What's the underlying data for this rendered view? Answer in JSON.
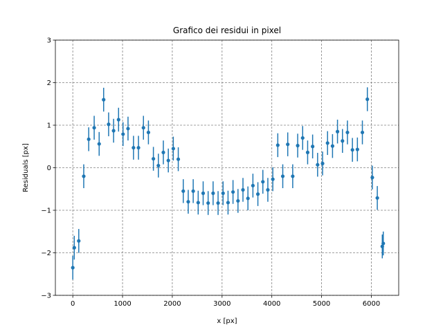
{
  "chart_data": {
    "type": "scatter",
    "title": "Grafico dei residui in pixel",
    "xlabel": "x [px]",
    "ylabel": "Residuals [px]",
    "xlim": [
      -350,
      6550
    ],
    "ylim": [
      -3,
      3
    ],
    "xticks": [
      0,
      1000,
      2000,
      3000,
      4000,
      5000,
      6000
    ],
    "yticks": [
      -3,
      -2,
      -1,
      0,
      1,
      2,
      3
    ],
    "xtick_labels": [
      "0",
      "1000",
      "2000",
      "3000",
      "4000",
      "5000",
      "6000"
    ],
    "ytick_labels": [
      "−3",
      "−2",
      "−1",
      "0",
      "1",
      "2",
      "3"
    ],
    "grid": true,
    "color": "#1f77b4",
    "grid_color": "#808080",
    "points": [
      {
        "x": 0,
        "y": -2.35,
        "err": 0.28
      },
      {
        "x": 30,
        "y": -1.88,
        "err": 0.28
      },
      {
        "x": 120,
        "y": -1.72,
        "err": 0.28
      },
      {
        "x": 220,
        "y": -0.2,
        "err": 0.28
      },
      {
        "x": 320,
        "y": 0.67,
        "err": 0.28
      },
      {
        "x": 430,
        "y": 0.94,
        "err": 0.28
      },
      {
        "x": 530,
        "y": 0.56,
        "err": 0.28
      },
      {
        "x": 620,
        "y": 1.6,
        "err": 0.28
      },
      {
        "x": 720,
        "y": 1.02,
        "err": 0.28
      },
      {
        "x": 820,
        "y": 0.87,
        "err": 0.28
      },
      {
        "x": 920,
        "y": 1.13,
        "err": 0.28
      },
      {
        "x": 1010,
        "y": 0.79,
        "err": 0.28
      },
      {
        "x": 1110,
        "y": 0.92,
        "err": 0.28
      },
      {
        "x": 1220,
        "y": 0.47,
        "err": 0.28
      },
      {
        "x": 1320,
        "y": 0.47,
        "err": 0.28
      },
      {
        "x": 1420,
        "y": 0.94,
        "err": 0.28
      },
      {
        "x": 1520,
        "y": 0.83,
        "err": 0.28
      },
      {
        "x": 1620,
        "y": 0.21,
        "err": 0.28
      },
      {
        "x": 1720,
        "y": 0.05,
        "err": 0.28
      },
      {
        "x": 1820,
        "y": 0.36,
        "err": 0.28
      },
      {
        "x": 1920,
        "y": 0.17,
        "err": 0.28
      },
      {
        "x": 2020,
        "y": 0.45,
        "err": 0.28
      },
      {
        "x": 2120,
        "y": 0.2,
        "err": 0.28
      },
      {
        "x": 2220,
        "y": -0.55,
        "err": 0.28
      },
      {
        "x": 2320,
        "y": -0.8,
        "err": 0.28
      },
      {
        "x": 2420,
        "y": -0.55,
        "err": 0.28
      },
      {
        "x": 2520,
        "y": -0.82,
        "err": 0.28
      },
      {
        "x": 2620,
        "y": -0.6,
        "err": 0.28
      },
      {
        "x": 2720,
        "y": -0.83,
        "err": 0.28
      },
      {
        "x": 2820,
        "y": -0.6,
        "err": 0.28
      },
      {
        "x": 2920,
        "y": -0.83,
        "err": 0.28
      },
      {
        "x": 3020,
        "y": -0.6,
        "err": 0.28
      },
      {
        "x": 3120,
        "y": -0.82,
        "err": 0.28
      },
      {
        "x": 3220,
        "y": -0.57,
        "err": 0.28
      },
      {
        "x": 3320,
        "y": -0.78,
        "err": 0.28
      },
      {
        "x": 3420,
        "y": -0.52,
        "err": 0.28
      },
      {
        "x": 3520,
        "y": -0.72,
        "err": 0.28
      },
      {
        "x": 3620,
        "y": -0.42,
        "err": 0.28
      },
      {
        "x": 3720,
        "y": -0.62,
        "err": 0.28
      },
      {
        "x": 3820,
        "y": -0.33,
        "err": 0.28
      },
      {
        "x": 3920,
        "y": -0.52,
        "err": 0.28
      },
      {
        "x": 4020,
        "y": -0.27,
        "err": 0.28
      },
      {
        "x": 4120,
        "y": 0.53,
        "err": 0.28
      },
      {
        "x": 4220,
        "y": -0.2,
        "err": 0.28
      },
      {
        "x": 4320,
        "y": 0.55,
        "err": 0.28
      },
      {
        "x": 4420,
        "y": -0.2,
        "err": 0.28
      },
      {
        "x": 4520,
        "y": 0.52,
        "err": 0.28
      },
      {
        "x": 4620,
        "y": 0.7,
        "err": 0.28
      },
      {
        "x": 4720,
        "y": 0.36,
        "err": 0.28
      },
      {
        "x": 4820,
        "y": 0.5,
        "err": 0.28
      },
      {
        "x": 4920,
        "y": 0.07,
        "err": 0.28
      },
      {
        "x": 5020,
        "y": 0.1,
        "err": 0.28
      },
      {
        "x": 5120,
        "y": 0.58,
        "err": 0.28
      },
      {
        "x": 5220,
        "y": 0.51,
        "err": 0.28
      },
      {
        "x": 5320,
        "y": 0.85,
        "err": 0.28
      },
      {
        "x": 5420,
        "y": 0.63,
        "err": 0.28
      },
      {
        "x": 5520,
        "y": 0.83,
        "err": 0.28
      },
      {
        "x": 5620,
        "y": 0.42,
        "err": 0.28
      },
      {
        "x": 5720,
        "y": 0.43,
        "err": 0.28
      },
      {
        "x": 5820,
        "y": 0.83,
        "err": 0.28
      },
      {
        "x": 5920,
        "y": 1.61,
        "err": 0.28
      },
      {
        "x": 6020,
        "y": -0.23,
        "err": 0.28
      },
      {
        "x": 6120,
        "y": -0.71,
        "err": 0.28
      },
      {
        "x": 6220,
        "y": -1.85,
        "err": 0.28
      },
      {
        "x": 6240,
        "y": -1.78,
        "err": 0.28
      }
    ]
  }
}
